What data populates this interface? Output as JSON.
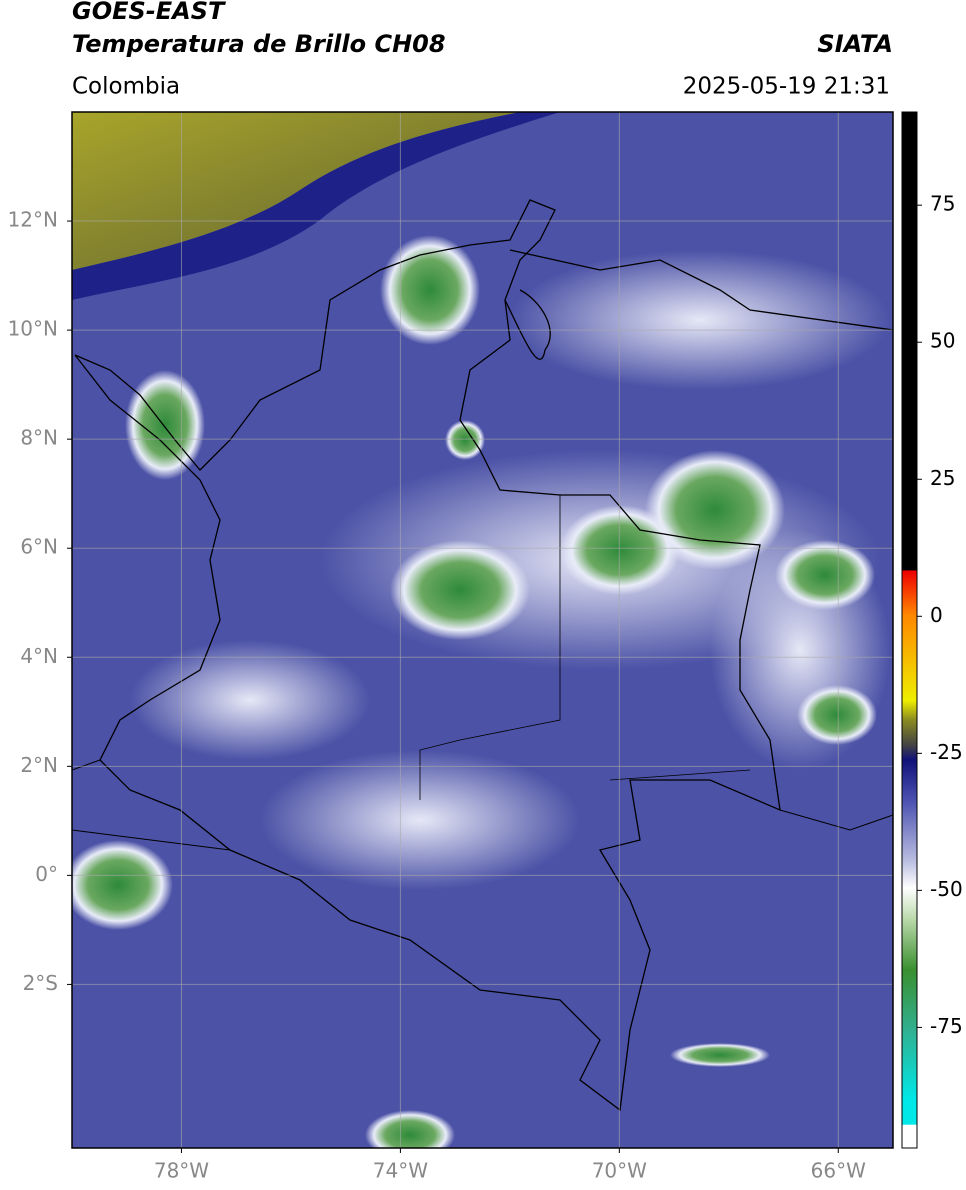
{
  "header": {
    "title": "GOES-EAST",
    "subtitle": "Temperatura de Brillo CH08",
    "source": "SIATA",
    "region": "Colombia",
    "datetime": "2025-05-19 21:31"
  },
  "map": {
    "xlim": [
      -80,
      -65
    ],
    "ylim": [
      -5,
      14
    ],
    "grid": true,
    "xticks": [
      {
        "value": -78,
        "label": "78°W"
      },
      {
        "value": -74,
        "label": "74°W"
      },
      {
        "value": -70,
        "label": "70°W"
      },
      {
        "value": -66,
        "label": "66°W"
      }
    ],
    "yticks": [
      {
        "value": 12,
        "label": "12°N"
      },
      {
        "value": 10,
        "label": "10°N"
      },
      {
        "value": 8,
        "label": "8°N"
      },
      {
        "value": 6,
        "label": "6°N"
      },
      {
        "value": 4,
        "label": "4°N"
      },
      {
        "value": 2,
        "label": "2°N"
      },
      {
        "value": 0,
        "label": "0°"
      },
      {
        "value": -2,
        "label": "2°S"
      }
    ]
  },
  "colorbar": {
    "lim": [
      -97,
      92
    ],
    "ticks": [
      75,
      50,
      25,
      0,
      -25,
      -50,
      -75
    ]
  }
}
